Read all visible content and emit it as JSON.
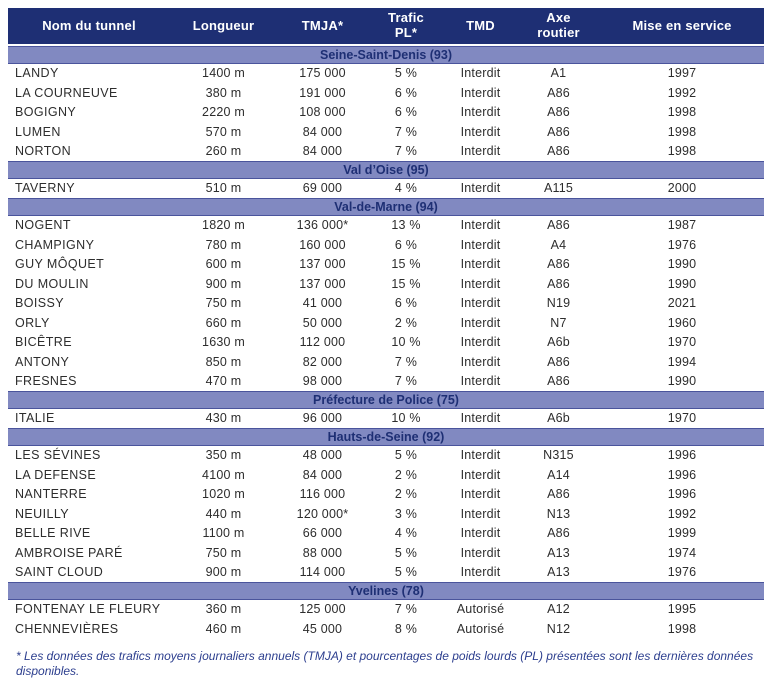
{
  "table": {
    "columns": [
      {
        "label": "Nom du tunnel"
      },
      {
        "label": "Longueur"
      },
      {
        "label": "TMJA*"
      },
      {
        "label": "Trafic\nPL*"
      },
      {
        "label": "TMD"
      },
      {
        "label": "Axe\nroutier"
      },
      {
        "label": "Mise en service"
      }
    ],
    "sections": [
      {
        "title": "Seine-Saint-Denis (93)",
        "rows": [
          [
            "LANDY",
            "1400 m",
            "175 000",
            "5 %",
            "Interdit",
            "A1",
            "1997"
          ],
          [
            "LA COURNEUVE",
            "380 m",
            "191 000",
            "6 %",
            "Interdit",
            "A86",
            "1992"
          ],
          [
            "BOGIGNY",
            "2220 m",
            "108 000",
            "6 %",
            "Interdit",
            "A86",
            "1998"
          ],
          [
            "LUMEN",
            "570 m",
            "84 000",
            "7 %",
            "Interdit",
            "A86",
            "1998"
          ],
          [
            "NORTON",
            "260 m",
            "84 000",
            "7 %",
            "Interdit",
            "A86",
            "1998"
          ]
        ]
      },
      {
        "title": "Val d’Oise (95)",
        "rows": [
          [
            "TAVERNY",
            "510 m",
            "69 000",
            "4 %",
            "Interdit",
            "A115",
            "2000"
          ]
        ]
      },
      {
        "title": "Val-de-Marne (94)",
        "rows": [
          [
            "NOGENT",
            "1820 m",
            "136 000*",
            "13 %",
            "Interdit",
            "A86",
            "1987"
          ],
          [
            "CHAMPIGNY",
            "780 m",
            "160 000",
            "6 %",
            "Interdit",
            "A4",
            "1976"
          ],
          [
            "GUY MÔQUET",
            "600 m",
            "137 000",
            "15 %",
            "Interdit",
            "A86",
            "1990"
          ],
          [
            "DU MOULIN",
            "900 m",
            "137 000",
            "15 %",
            "Interdit",
            "A86",
            "1990"
          ],
          [
            "BOISSY",
            "750 m",
            "41 000",
            "6 %",
            "Interdit",
            "N19",
            "2021"
          ],
          [
            "ORLY",
            "660 m",
            "50 000",
            "2 %",
            "Interdit",
            "N7",
            "1960"
          ],
          [
            "BICÊTRE",
            "1630 m",
            "112 000",
            "10 %",
            "Interdit",
            "A6b",
            "1970"
          ],
          [
            "ANTONY",
            "850 m",
            "82 000",
            "7 %",
            "Interdit",
            "A86",
            "1994"
          ],
          [
            "FRESNES",
            "470 m",
            "98 000",
            "7 %",
            "Interdit",
            "A86",
            "1990"
          ]
        ]
      },
      {
        "title": "Préfecture de Police (75)",
        "rows": [
          [
            "ITALIE",
            "430 m",
            "96 000",
            "10 %",
            "Interdit",
            "A6b",
            "1970"
          ]
        ]
      },
      {
        "title": "Hauts-de-Seine (92)",
        "rows": [
          [
            "LES SÉVINES",
            "350 m",
            "48 000",
            "5 %",
            "Interdit",
            "N315",
            "1996"
          ],
          [
            "LA DEFENSE",
            "4100 m",
            "84 000",
            "2 %",
            "Interdit",
            "A14",
            "1996"
          ],
          [
            "NANTERRE",
            "1020 m",
            "116 000",
            "2 %",
            "Interdit",
            "A86",
            "1996"
          ],
          [
            "NEUILLY",
            "440 m",
            "120 000*",
            "3 %",
            "Interdit",
            "N13",
            "1992"
          ],
          [
            "BELLE RIVE",
            "1100 m",
            "66 000",
            "4 %",
            "Interdit",
            "A86",
            "1999"
          ],
          [
            "AMBROISE PARÉ",
            "750 m",
            "88 000",
            "5 %",
            "Interdit",
            "A13",
            "1974"
          ],
          [
            "SAINT CLOUD",
            "900 m",
            "114 000",
            "5 %",
            "Interdit",
            "A13",
            "1976"
          ]
        ]
      },
      {
        "title": "Yvelines (78)",
        "rows": [
          [
            "FONTENAY LE FLEURY",
            "360 m",
            "125 000",
            "7 %",
            "Autorisé",
            "A12",
            "1995"
          ],
          [
            "CHENNEVIÈRES",
            "460 m",
            "45 000",
            "8 %",
            "Autorisé",
            "N12",
            "1998"
          ]
        ]
      }
    ]
  },
  "footnote": "* Les données des trafics moyens journaliers annuels (TMJA) et pourcentages de poids lourds (PL) présentées sont les dernières données disponibles.",
  "colors": {
    "header_bg": "#1e2f74",
    "header_text": "#ffffff",
    "band_bg": "#8189c1",
    "band_text": "#1e2f74",
    "row_text": "#2d2d2d",
    "footnote_text": "#2c3e8e"
  }
}
